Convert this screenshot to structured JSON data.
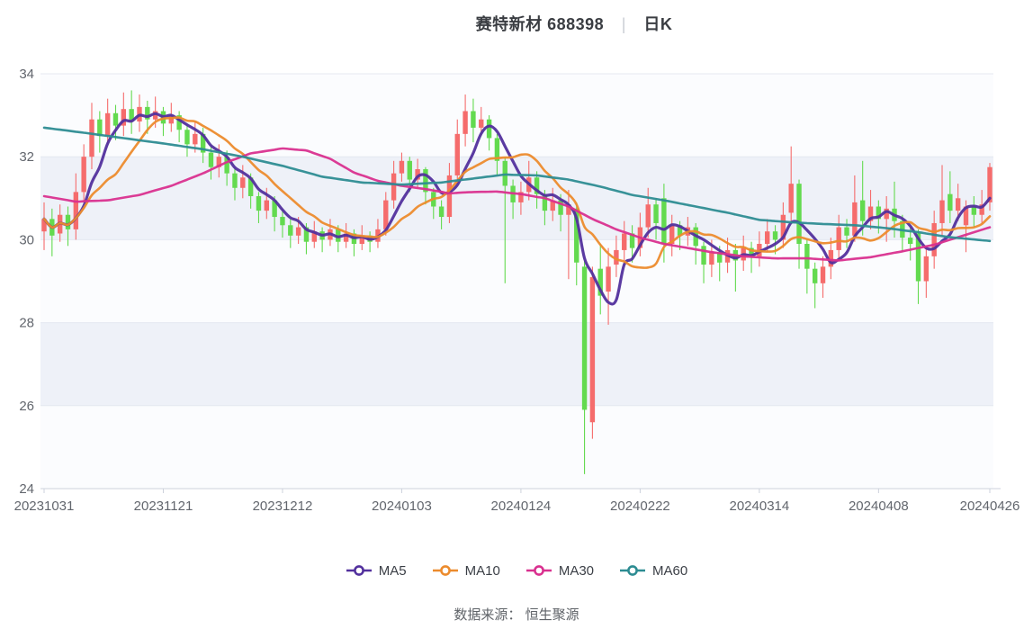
{
  "title": {
    "stock": "赛特新材 688398",
    "separator": "|",
    "period": "日K"
  },
  "source_note": "数据来源： 恒生聚源",
  "chart_data": {
    "type": "candlestick",
    "title": "赛特新材 688398 日K",
    "legend_position": "bottom",
    "grid": true,
    "y_axis": {
      "min": 24,
      "max": 34,
      "ticks": [
        24,
        26,
        28,
        30,
        32,
        34
      ]
    },
    "x_axis": {
      "tick_labels": [
        "20231031",
        "20231121",
        "20231212",
        "20240103",
        "20240124",
        "20240222",
        "20240314",
        "20240408",
        "20240426"
      ],
      "tick_indices": [
        0,
        15,
        30,
        45,
        60,
        75,
        90,
        105,
        119
      ]
    },
    "colors": {
      "up": "#f56c6c",
      "down": "#63da4f",
      "ma5": "#52309d",
      "ma10": "#ec8b2d",
      "ma30": "#d9308f",
      "ma60": "#2d8c92",
      "grid": "#e4e8f0",
      "band_dark": "#eef1f8",
      "band_light": "#fbfcfe",
      "axis": "#ccd2dc",
      "label": "#62666d"
    },
    "candles_format": [
      "open",
      "close",
      "low",
      "high"
    ],
    "candles": [
      [
        30.2,
        30.5,
        29.75,
        30.9
      ],
      [
        30.5,
        30.1,
        29.6,
        30.75
      ],
      [
        30.15,
        30.6,
        29.95,
        30.85
      ],
      [
        30.6,
        30.25,
        29.85,
        30.8
      ],
      [
        30.25,
        31.15,
        30.0,
        31.6
      ],
      [
        31.15,
        32.0,
        30.9,
        32.3
      ],
      [
        32.0,
        32.9,
        31.7,
        33.3
      ],
      [
        32.9,
        32.5,
        32.1,
        33.1
      ],
      [
        32.5,
        33.05,
        32.3,
        33.4
      ],
      [
        33.05,
        32.75,
        32.4,
        33.25
      ],
      [
        32.75,
        33.15,
        32.5,
        33.55
      ],
      [
        33.15,
        32.85,
        32.55,
        33.6
      ],
      [
        32.85,
        33.2,
        32.6,
        33.5
      ],
      [
        33.2,
        32.9,
        32.55,
        33.35
      ],
      [
        32.9,
        33.1,
        32.7,
        33.45
      ],
      [
        33.1,
        32.8,
        32.5,
        33.2
      ],
      [
        32.8,
        33.0,
        32.6,
        33.3
      ],
      [
        33.0,
        32.65,
        32.35,
        33.1
      ],
      [
        32.65,
        32.3,
        32.0,
        32.8
      ],
      [
        32.3,
        32.55,
        32.1,
        32.85
      ],
      [
        32.55,
        32.1,
        31.85,
        32.7
      ],
      [
        32.1,
        31.75,
        31.45,
        32.25
      ],
      [
        31.75,
        32.0,
        31.5,
        32.3
      ],
      [
        32.0,
        31.6,
        31.3,
        32.15
      ],
      [
        31.6,
        31.25,
        30.95,
        31.75
      ],
      [
        31.25,
        31.5,
        31.0,
        31.8
      ],
      [
        31.5,
        31.05,
        30.75,
        31.6
      ],
      [
        31.05,
        30.7,
        30.4,
        31.15
      ],
      [
        30.7,
        30.95,
        30.5,
        31.25
      ],
      [
        30.95,
        30.55,
        30.2,
        31.05
      ],
      [
        30.55,
        30.35,
        30.05,
        30.75
      ],
      [
        30.35,
        30.1,
        29.8,
        30.5
      ],
      [
        30.1,
        30.3,
        29.9,
        30.55
      ],
      [
        30.3,
        29.95,
        29.65,
        30.4
      ],
      [
        29.95,
        30.2,
        29.8,
        30.45
      ],
      [
        30.2,
        30.0,
        29.7,
        30.3
      ],
      [
        30.0,
        30.25,
        29.85,
        30.5
      ],
      [
        30.25,
        29.95,
        29.7,
        30.35
      ],
      [
        29.95,
        30.15,
        29.8,
        30.4
      ],
      [
        30.15,
        29.9,
        29.6,
        30.25
      ],
      [
        29.9,
        30.1,
        29.75,
        30.35
      ],
      [
        30.1,
        29.95,
        29.7,
        30.2
      ],
      [
        29.95,
        30.25,
        29.8,
        30.5
      ],
      [
        30.25,
        30.95,
        30.1,
        31.15
      ],
      [
        30.95,
        31.6,
        30.75,
        31.9
      ],
      [
        31.6,
        31.9,
        31.4,
        32.1
      ],
      [
        31.9,
        31.45,
        31.15,
        32.0
      ],
      [
        31.45,
        31.7,
        31.25,
        31.95
      ],
      [
        31.7,
        31.15,
        30.85,
        31.75
      ],
      [
        31.15,
        30.8,
        30.5,
        31.25
      ],
      [
        30.8,
        30.55,
        30.25,
        30.95
      ],
      [
        30.55,
        31.55,
        30.4,
        31.85
      ],
      [
        31.55,
        32.55,
        31.35,
        32.9
      ],
      [
        32.55,
        33.1,
        32.25,
        33.5
      ],
      [
        33.1,
        32.7,
        32.35,
        33.4
      ],
      [
        32.7,
        32.9,
        32.5,
        33.2
      ],
      [
        32.9,
        32.45,
        32.15,
        33.0
      ],
      [
        32.45,
        31.9,
        31.55,
        32.55
      ],
      [
        31.9,
        31.3,
        28.95,
        32.0
      ],
      [
        31.3,
        30.9,
        30.5,
        31.45
      ],
      [
        30.9,
        31.15,
        30.6,
        31.4
      ],
      [
        31.15,
        31.5,
        30.95,
        31.9
      ],
      [
        31.5,
        31.1,
        30.75,
        31.65
      ],
      [
        31.1,
        30.7,
        30.35,
        31.2
      ],
      [
        30.7,
        30.95,
        30.45,
        31.25
      ],
      [
        30.95,
        30.6,
        30.2,
        31.1
      ],
      [
        30.6,
        30.85,
        29.05,
        31.2
      ],
      [
        30.75,
        29.45,
        28.9,
        30.9
      ],
      [
        29.35,
        25.9,
        24.35,
        29.5
      ],
      [
        25.6,
        29.1,
        25.2,
        29.35
      ],
      [
        29.3,
        28.65,
        28.2,
        29.9
      ],
      [
        28.75,
        29.35,
        27.95,
        29.8
      ],
      [
        29.4,
        29.75,
        29.1,
        30.1
      ],
      [
        29.75,
        30.15,
        29.5,
        30.45
      ],
      [
        30.15,
        29.8,
        29.45,
        30.35
      ],
      [
        29.8,
        30.3,
        29.6,
        30.65
      ],
      [
        30.3,
        30.85,
        30.05,
        31.25
      ],
      [
        30.85,
        30.4,
        30.0,
        31.0
      ],
      [
        31.0,
        29.9,
        29.45,
        31.35
      ],
      [
        29.9,
        30.35,
        29.6,
        30.6
      ],
      [
        30.35,
        30.1,
        29.75,
        30.45
      ],
      [
        30.1,
        30.3,
        29.85,
        30.55
      ],
      [
        30.3,
        29.85,
        29.4,
        30.4
      ],
      [
        29.85,
        29.4,
        28.95,
        29.95
      ],
      [
        29.4,
        29.7,
        29.1,
        30.0
      ],
      [
        29.7,
        29.45,
        29.0,
        29.85
      ],
      [
        29.45,
        29.75,
        29.2,
        30.05
      ],
      [
        29.75,
        29.5,
        28.75,
        29.9
      ],
      [
        29.5,
        29.8,
        29.25,
        30.1
      ],
      [
        29.8,
        29.6,
        29.2,
        29.95
      ],
      [
        29.6,
        29.9,
        29.35,
        30.2
      ],
      [
        29.9,
        30.2,
        29.7,
        30.5
      ],
      [
        30.2,
        30.0,
        29.65,
        30.35
      ],
      [
        30.0,
        30.6,
        29.8,
        30.9
      ],
      [
        30.65,
        31.35,
        30.4,
        32.25
      ],
      [
        31.35,
        29.9,
        29.3,
        31.45
      ],
      [
        29.9,
        29.3,
        28.7,
        30.0
      ],
      [
        29.3,
        28.95,
        28.35,
        29.45
      ],
      [
        28.95,
        29.35,
        28.6,
        29.6
      ],
      [
        29.35,
        29.75,
        29.05,
        30.05
      ],
      [
        29.75,
        30.3,
        29.5,
        30.6
      ],
      [
        30.3,
        30.1,
        29.8,
        30.5
      ],
      [
        30.1,
        30.9,
        29.95,
        31.55
      ],
      [
        30.95,
        30.45,
        30.1,
        31.9
      ],
      [
        30.45,
        30.8,
        30.25,
        31.2
      ],
      [
        30.8,
        30.5,
        30.15,
        30.95
      ],
      [
        30.5,
        30.75,
        29.95,
        31.05
      ],
      [
        30.75,
        30.45,
        30.05,
        31.4
      ],
      [
        30.45,
        30.05,
        29.7,
        30.6
      ],
      [
        30.05,
        29.9,
        29.5,
        30.3
      ],
      [
        30.15,
        29.0,
        28.45,
        30.25
      ],
      [
        29.0,
        29.6,
        28.6,
        29.85
      ],
      [
        29.6,
        30.4,
        29.3,
        30.7
      ],
      [
        30.4,
        30.95,
        30.1,
        31.8
      ],
      [
        31.1,
        30.7,
        30.4,
        31.65
      ],
      [
        30.7,
        31.0,
        30.45,
        31.35
      ],
      [
        30.35,
        30.8,
        29.7,
        30.95
      ],
      [
        30.8,
        30.6,
        30.3,
        31.05
      ],
      [
        30.6,
        30.85,
        30.4,
        31.2
      ],
      [
        30.9,
        31.75,
        30.7,
        31.85
      ]
    ],
    "ma_series": [
      {
        "name": "MA5",
        "color_key": "ma5",
        "derive_window": 5
      },
      {
        "name": "MA10",
        "color_key": "ma10",
        "derive_window": 10
      },
      {
        "name": "MA30",
        "color_key": "ma30",
        "points": [
          [
            0,
            31.05
          ],
          [
            4,
            30.92
          ],
          [
            8,
            30.95
          ],
          [
            12,
            31.08
          ],
          [
            16,
            31.3
          ],
          [
            20,
            31.6
          ],
          [
            23,
            31.87
          ],
          [
            26,
            32.08
          ],
          [
            30,
            32.2
          ],
          [
            33,
            32.15
          ],
          [
            36,
            31.95
          ],
          [
            39,
            31.62
          ],
          [
            42,
            31.42
          ],
          [
            45,
            31.3
          ],
          [
            48,
            31.22
          ],
          [
            51,
            31.12
          ],
          [
            54,
            31.15
          ],
          [
            57,
            31.16
          ],
          [
            60,
            31.1
          ],
          [
            63,
            31.0
          ],
          [
            66,
            30.8
          ],
          [
            69,
            30.5
          ],
          [
            72,
            30.25
          ],
          [
            75,
            30.05
          ],
          [
            78,
            29.9
          ],
          [
            81,
            29.8
          ],
          [
            84,
            29.7
          ],
          [
            88,
            29.6
          ],
          [
            92,
            29.55
          ],
          [
            96,
            29.55
          ],
          [
            100,
            29.5
          ],
          [
            104,
            29.58
          ],
          [
            108,
            29.72
          ],
          [
            112,
            29.88
          ],
          [
            116,
            30.12
          ],
          [
            119,
            30.3
          ]
        ]
      },
      {
        "name": "MA60",
        "color_key": "ma60",
        "points": [
          [
            0,
            32.7
          ],
          [
            5,
            32.58
          ],
          [
            10,
            32.45
          ],
          [
            15,
            32.32
          ],
          [
            20,
            32.18
          ],
          [
            25,
            32.0
          ],
          [
            30,
            31.78
          ],
          [
            35,
            31.52
          ],
          [
            40,
            31.38
          ],
          [
            45,
            31.33
          ],
          [
            50,
            31.38
          ],
          [
            55,
            31.5
          ],
          [
            58,
            31.57
          ],
          [
            62,
            31.55
          ],
          [
            66,
            31.45
          ],
          [
            70,
            31.28
          ],
          [
            74,
            31.08
          ],
          [
            78,
            30.95
          ],
          [
            82,
            30.8
          ],
          [
            86,
            30.65
          ],
          [
            90,
            30.48
          ],
          [
            94,
            30.42
          ],
          [
            98,
            30.38
          ],
          [
            102,
            30.35
          ],
          [
            106,
            30.28
          ],
          [
            110,
            30.18
          ],
          [
            114,
            30.06
          ],
          [
            119,
            29.97
          ]
        ]
      }
    ]
  }
}
